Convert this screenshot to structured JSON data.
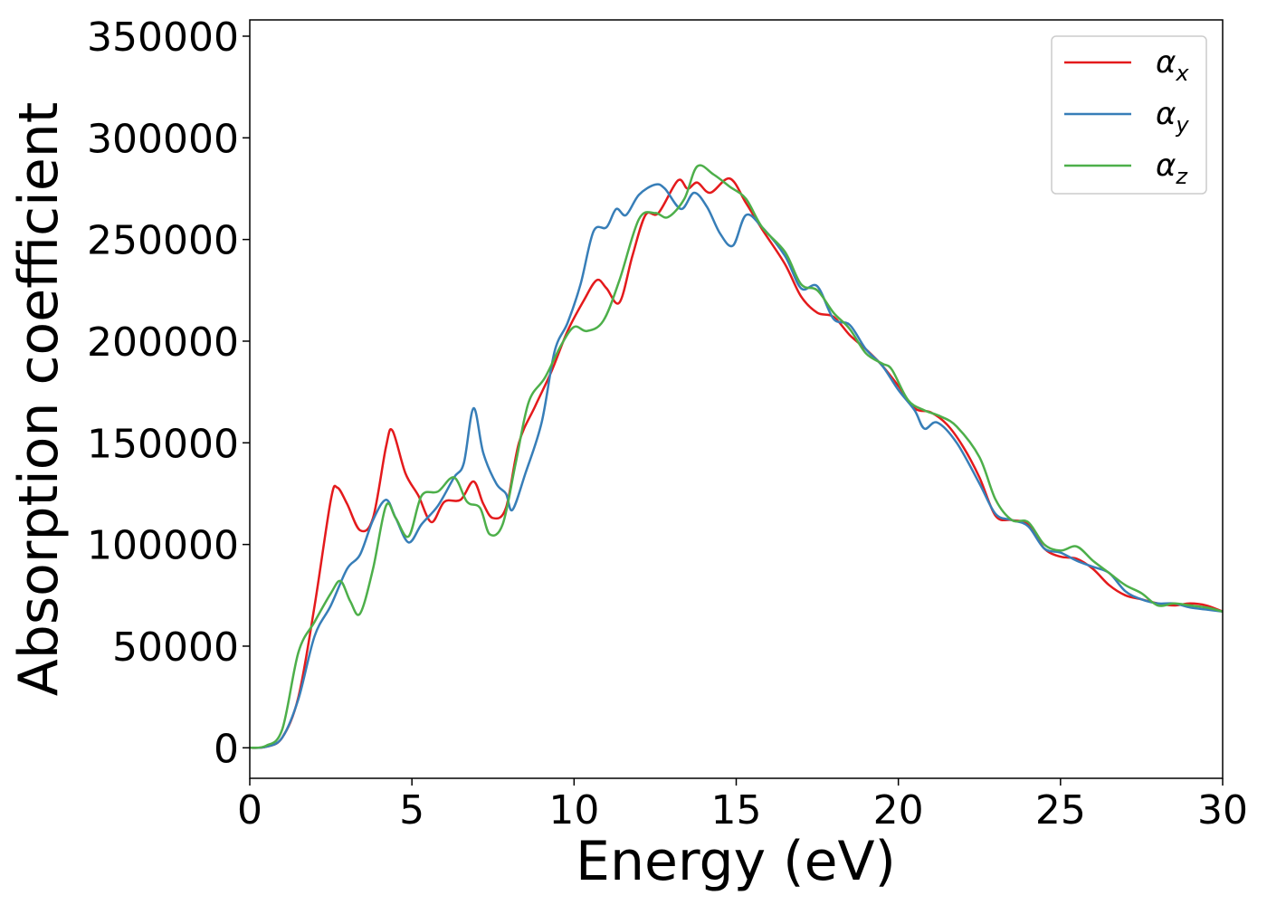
{
  "chart_data": {
    "type": "line",
    "xlabel": "Energy (eV)",
    "ylabel": "Absorption coefficient",
    "xlim": [
      0,
      30
    ],
    "ylim": [
      -15000,
      358000
    ],
    "x_ticks": [
      0,
      5,
      10,
      15,
      20,
      25,
      30
    ],
    "y_ticks": [
      0,
      50000,
      100000,
      150000,
      200000,
      250000,
      300000,
      350000
    ],
    "grid": false,
    "legend_position": "top-right",
    "series": [
      {
        "name": "αx",
        "legend_symbol": "α",
        "legend_sub": "x",
        "color": "#e41a1c",
        "points": [
          [
            0,
            0
          ],
          [
            0.5,
            500
          ],
          [
            1,
            5000
          ],
          [
            1.5,
            25000
          ],
          [
            2,
            70000
          ],
          [
            2.5,
            122000
          ],
          [
            2.7,
            128000
          ],
          [
            3,
            120000
          ],
          [
            3.4,
            107000
          ],
          [
            3.8,
            113000
          ],
          [
            4.2,
            148000
          ],
          [
            4.4,
            156000
          ],
          [
            4.8,
            135000
          ],
          [
            5.2,
            124000
          ],
          [
            5.6,
            111000
          ],
          [
            6,
            121000
          ],
          [
            6.5,
            122000
          ],
          [
            6.9,
            131000
          ],
          [
            7.2,
            120000
          ],
          [
            7.5,
            113000
          ],
          [
            7.9,
            118000
          ],
          [
            8.3,
            150000
          ],
          [
            8.8,
            168000
          ],
          [
            9.3,
            185000
          ],
          [
            9.8,
            205000
          ],
          [
            10.3,
            220000
          ],
          [
            10.7,
            230000
          ],
          [
            11,
            226000
          ],
          [
            11.4,
            219000
          ],
          [
            11.8,
            242000
          ],
          [
            12.2,
            262000
          ],
          [
            12.6,
            263000
          ],
          [
            13.2,
            279000
          ],
          [
            13.5,
            275000
          ],
          [
            13.8,
            278000
          ],
          [
            14.2,
            273000
          ],
          [
            14.8,
            280000
          ],
          [
            15.3,
            268000
          ],
          [
            15.8,
            255000
          ],
          [
            16.5,
            238000
          ],
          [
            17,
            222000
          ],
          [
            17.5,
            214000
          ],
          [
            18,
            212000
          ],
          [
            18.5,
            203000
          ],
          [
            19,
            196000
          ],
          [
            19.5,
            188000
          ],
          [
            20,
            178000
          ],
          [
            20.5,
            167000
          ],
          [
            21,
            165000
          ],
          [
            21.5,
            159000
          ],
          [
            22,
            148000
          ],
          [
            22.5,
            133000
          ],
          [
            23,
            114000
          ],
          [
            23.5,
            112000
          ],
          [
            24,
            110000
          ],
          [
            24.5,
            98000
          ],
          [
            25,
            94000
          ],
          [
            25.5,
            93000
          ],
          [
            26,
            88000
          ],
          [
            26.5,
            80000
          ],
          [
            27,
            75000
          ],
          [
            27.5,
            73000
          ],
          [
            28,
            71000
          ],
          [
            28.5,
            70000
          ],
          [
            29,
            71000
          ],
          [
            29.5,
            70000
          ],
          [
            30,
            67000
          ]
        ]
      },
      {
        "name": "αy",
        "legend_symbol": "α",
        "legend_sub": "y",
        "color": "#377eb8",
        "points": [
          [
            0,
            0
          ],
          [
            0.5,
            500
          ],
          [
            1,
            5000
          ],
          [
            1.5,
            24000
          ],
          [
            2,
            55000
          ],
          [
            2.5,
            70000
          ],
          [
            3,
            88000
          ],
          [
            3.4,
            95000
          ],
          [
            3.8,
            112000
          ],
          [
            4.2,
            122000
          ],
          [
            4.5,
            113000
          ],
          [
            4.9,
            101000
          ],
          [
            5.3,
            110000
          ],
          [
            5.8,
            119000
          ],
          [
            6.3,
            133000
          ],
          [
            6.6,
            140000
          ],
          [
            6.9,
            167000
          ],
          [
            7.2,
            145000
          ],
          [
            7.6,
            130000
          ],
          [
            7.9,
            125000
          ],
          [
            8.1,
            117000
          ],
          [
            8.5,
            135000
          ],
          [
            9,
            160000
          ],
          [
            9.4,
            195000
          ],
          [
            9.8,
            209000
          ],
          [
            10.2,
            228000
          ],
          [
            10.6,
            254000
          ],
          [
            11,
            256000
          ],
          [
            11.3,
            265000
          ],
          [
            11.6,
            262000
          ],
          [
            12,
            272000
          ],
          [
            12.5,
            277000
          ],
          [
            12.8,
            275000
          ],
          [
            13.3,
            265000
          ],
          [
            13.7,
            273000
          ],
          [
            14.1,
            266000
          ],
          [
            14.5,
            253000
          ],
          [
            14.9,
            247000
          ],
          [
            15.3,
            262000
          ],
          [
            15.8,
            256000
          ],
          [
            16.5,
            242000
          ],
          [
            17,
            226000
          ],
          [
            17.5,
            227000
          ],
          [
            18,
            211000
          ],
          [
            18.5,
            208000
          ],
          [
            19,
            196000
          ],
          [
            19.5,
            188000
          ],
          [
            20,
            176000
          ],
          [
            20.5,
            166000
          ],
          [
            20.8,
            157000
          ],
          [
            21.2,
            160000
          ],
          [
            21.8,
            150000
          ],
          [
            22.5,
            130000
          ],
          [
            23,
            115000
          ],
          [
            23.5,
            112000
          ],
          [
            24,
            109000
          ],
          [
            24.5,
            98000
          ],
          [
            25,
            96000
          ],
          [
            25.5,
            92000
          ],
          [
            26,
            89000
          ],
          [
            26.5,
            86000
          ],
          [
            27,
            77000
          ],
          [
            27.5,
            73000
          ],
          [
            28,
            71000
          ],
          [
            28.5,
            71000
          ],
          [
            29,
            69000
          ],
          [
            29.5,
            68000
          ],
          [
            30,
            67000
          ]
        ]
      },
      {
        "name": "αz",
        "legend_symbol": "α",
        "legend_sub": "z",
        "color": "#4daf4a",
        "points": [
          [
            0,
            0
          ],
          [
            0.5,
            1000
          ],
          [
            1,
            9000
          ],
          [
            1.5,
            47000
          ],
          [
            2,
            62000
          ],
          [
            2.5,
            76000
          ],
          [
            2.8,
            82000
          ],
          [
            3.1,
            72000
          ],
          [
            3.4,
            66000
          ],
          [
            3.8,
            88000
          ],
          [
            4.2,
            119000
          ],
          [
            4.5,
            113000
          ],
          [
            4.9,
            104000
          ],
          [
            5.3,
            124000
          ],
          [
            5.8,
            126000
          ],
          [
            6.3,
            133000
          ],
          [
            6.7,
            121000
          ],
          [
            7.1,
            118000
          ],
          [
            7.4,
            105000
          ],
          [
            7.8,
            110000
          ],
          [
            8.2,
            140000
          ],
          [
            8.6,
            170000
          ],
          [
            9.1,
            182000
          ],
          [
            9.6,
            198000
          ],
          [
            10,
            207000
          ],
          [
            10.4,
            205000
          ],
          [
            10.9,
            210000
          ],
          [
            11.4,
            230000
          ],
          [
            12,
            260000
          ],
          [
            12.5,
            263000
          ],
          [
            12.9,
            261000
          ],
          [
            13.4,
            270000
          ],
          [
            13.8,
            286000
          ],
          [
            14.3,
            282000
          ],
          [
            14.8,
            276000
          ],
          [
            15.3,
            270000
          ],
          [
            15.8,
            256000
          ],
          [
            16.5,
            244000
          ],
          [
            17,
            228000
          ],
          [
            17.5,
            225000
          ],
          [
            18,
            214000
          ],
          [
            18.5,
            206000
          ],
          [
            19,
            194000
          ],
          [
            19.5,
            189000
          ],
          [
            19.8,
            186000
          ],
          [
            20.3,
            171000
          ],
          [
            20.8,
            166000
          ],
          [
            21.3,
            163000
          ],
          [
            21.8,
            158000
          ],
          [
            22.5,
            143000
          ],
          [
            23,
            122000
          ],
          [
            23.5,
            112000
          ],
          [
            24,
            111000
          ],
          [
            24.5,
            100000
          ],
          [
            25,
            97000
          ],
          [
            25.5,
            99000
          ],
          [
            26,
            92000
          ],
          [
            26.5,
            86000
          ],
          [
            27,
            80000
          ],
          [
            27.5,
            76000
          ],
          [
            28,
            70000
          ],
          [
            28.5,
            71000
          ],
          [
            29,
            70000
          ],
          [
            29.5,
            69000
          ],
          [
            30,
            67000
          ]
        ]
      }
    ]
  }
}
